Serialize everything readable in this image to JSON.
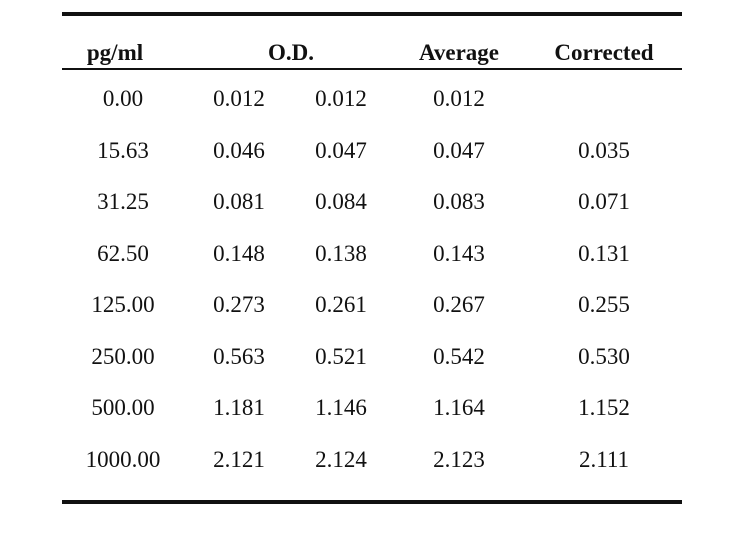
{
  "table": {
    "headers": {
      "conc": "pg/ml",
      "od": "O.D.",
      "average": "Average",
      "corrected": "Corrected"
    },
    "rows": [
      {
        "conc": "0.00",
        "od1": "0.012",
        "od2": "0.012",
        "average": "0.012",
        "corrected": ""
      },
      {
        "conc": "15.63",
        "od1": "0.046",
        "od2": "0.047",
        "average": "0.047",
        "corrected": "0.035"
      },
      {
        "conc": "31.25",
        "od1": "0.081",
        "od2": "0.084",
        "average": "0.083",
        "corrected": "0.071"
      },
      {
        "conc": "62.50",
        "od1": "0.148",
        "od2": "0.138",
        "average": "0.143",
        "corrected": "0.131"
      },
      {
        "conc": "125.00",
        "od1": "0.273",
        "od2": "0.261",
        "average": "0.267",
        "corrected": "0.255"
      },
      {
        "conc": "250.00",
        "od1": "0.563",
        "od2": "0.521",
        "average": "0.542",
        "corrected": "0.530"
      },
      {
        "conc": "500.00",
        "od1": "1.181",
        "od2": "1.146",
        "average": "1.164",
        "corrected": "1.152"
      },
      {
        "conc": "1000.00",
        "od1": "2.121",
        "od2": "2.124",
        "average": "2.123",
        "corrected": "2.111"
      }
    ]
  }
}
